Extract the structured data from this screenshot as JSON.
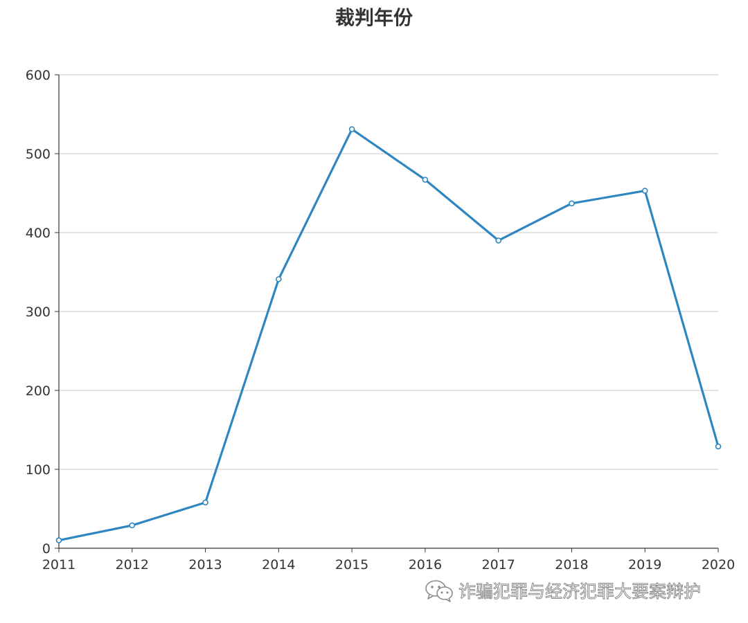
{
  "chart_data": {
    "type": "line",
    "title": "裁判年份",
    "xlabel": "",
    "ylabel": "",
    "categories": [
      "2011",
      "2012",
      "2013",
      "2014",
      "2015",
      "2016",
      "2017",
      "2018",
      "2019",
      "2020"
    ],
    "series": [
      {
        "values": [
          10,
          29,
          58,
          341,
          531,
          467,
          390,
          437,
          453,
          129
        ]
      }
    ],
    "ylim": [
      0,
      600
    ],
    "yticks": [
      0,
      100,
      200,
      300,
      400,
      500,
      600
    ],
    "grid": true,
    "legend": "none",
    "line_color": "#2e86c1"
  },
  "watermark": {
    "text": "诈骗犯罪与经济犯罪大要案辩护",
    "icon": "wechat-icon"
  }
}
